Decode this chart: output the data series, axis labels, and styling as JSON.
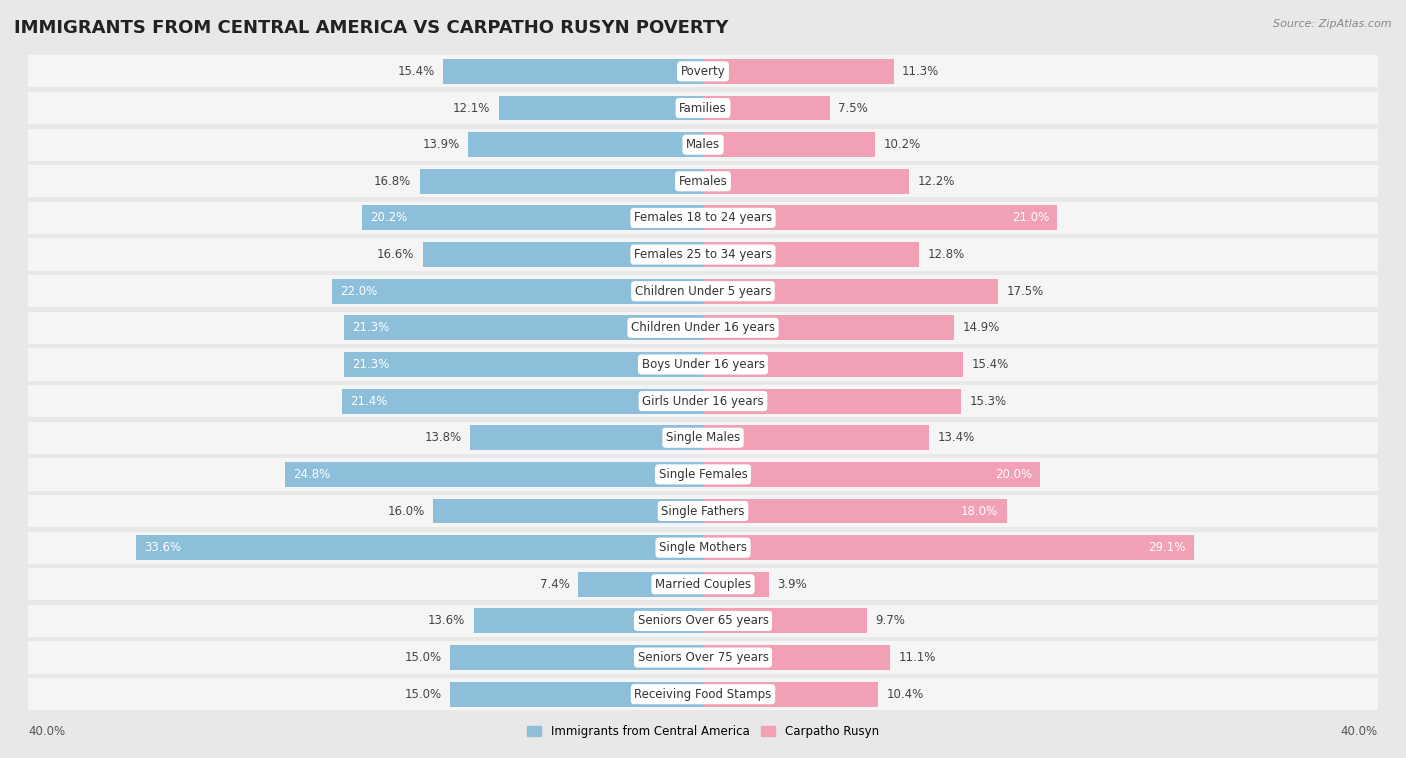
{
  "title": "IMMIGRANTS FROM CENTRAL AMERICA VS CARPATHO RUSYN POVERTY",
  "source": "Source: ZipAtlas.com",
  "categories": [
    "Poverty",
    "Families",
    "Males",
    "Females",
    "Females 18 to 24 years",
    "Females 25 to 34 years",
    "Children Under 5 years",
    "Children Under 16 years",
    "Boys Under 16 years",
    "Girls Under 16 years",
    "Single Males",
    "Single Females",
    "Single Fathers",
    "Single Mothers",
    "Married Couples",
    "Seniors Over 65 years",
    "Seniors Over 75 years",
    "Receiving Food Stamps"
  ],
  "left_values": [
    15.4,
    12.1,
    13.9,
    16.8,
    20.2,
    16.6,
    22.0,
    21.3,
    21.3,
    21.4,
    13.8,
    24.8,
    16.0,
    33.6,
    7.4,
    13.6,
    15.0,
    15.0
  ],
  "right_values": [
    11.3,
    7.5,
    10.2,
    12.2,
    21.0,
    12.8,
    17.5,
    14.9,
    15.4,
    15.3,
    13.4,
    20.0,
    18.0,
    29.1,
    3.9,
    9.7,
    11.1,
    10.4
  ],
  "left_color": "#8dbfda",
  "right_color": "#f2a0b5",
  "background_color": "#e8e8e8",
  "row_color": "#f5f5f5",
  "label_bg_color": "#ffffff",
  "xlim": 40.0,
  "legend_left": "Immigrants from Central America",
  "legend_right": "Carpatho Rusyn",
  "title_fontsize": 13,
  "cat_fontsize": 8.5,
  "value_fontsize": 8.5,
  "inside_threshold": 18.0,
  "bar_height": 0.68
}
